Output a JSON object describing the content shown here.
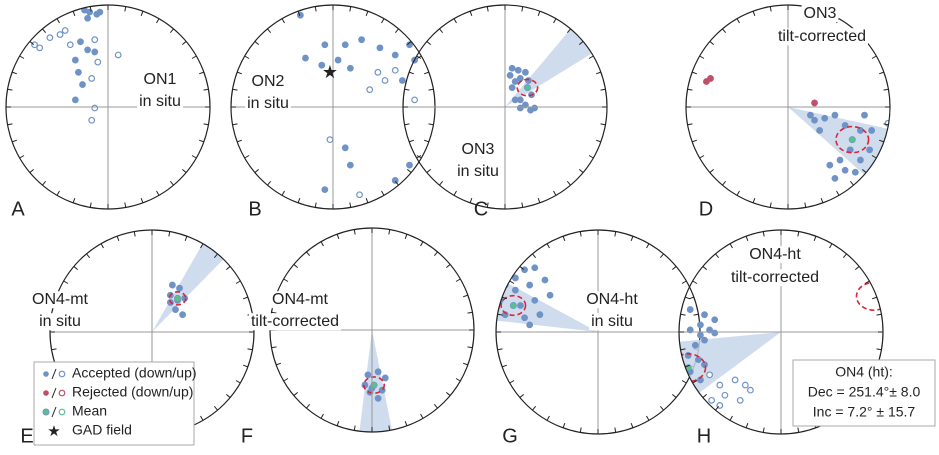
{
  "chart_data": [
    {
      "type": "stereonet",
      "label": "A",
      "title": [
        "ON1",
        "in situ"
      ],
      "down": {
        "x": [
          -0.23,
          -0.18,
          -0.11,
          -0.08,
          -0.2,
          -0.27,
          -0.2,
          -0.32,
          -0.29,
          -0.25,
          -0.32,
          -0.13
        ],
        "y": [
          0.95,
          0.93,
          0.91,
          0.93,
          0.87,
          0.64,
          0.56,
          0.46,
          0.34,
          0.22,
          0.07,
          0.54
        ]
      },
      "up": {
        "x": [
          -0.72,
          -0.67,
          -0.57,
          -0.47,
          -0.42,
          -0.37,
          -0.13,
          -0.1,
          -0.16,
          -0.13,
          -0.16,
          0.1
        ],
        "y": [
          0.61,
          0.58,
          0.68,
          0.71,
          0.75,
          0.61,
          0.66,
          0.44,
          0.28,
          -0.01,
          -0.13,
          0.51
        ]
      }
    },
    {
      "type": "stereonet",
      "label": "B",
      "title": [
        "ON2",
        "in situ"
      ],
      "down": {
        "x": [
          -0.32,
          -0.08,
          0.12,
          -0.11,
          0.05,
          0.17,
          0.28,
          0.46,
          0.61,
          0.75,
          0.8,
          0.68,
          0.66,
          -0.27,
          0.12,
          0.17,
          -0.08,
          0.75,
          0.93,
          0.61
        ],
        "y": [
          0.9,
          0.61,
          0.61,
          0.41,
          0.46,
          0.38,
          0.66,
          0.58,
          0.51,
          0.61,
          0.46,
          0.26,
          0.87,
          0.48,
          -0.4,
          -0.57,
          -0.81,
          -0.57,
          -0.47,
          -0.72
        ]
      },
      "up": {
        "x": [
          0.44,
          0.51,
          0.61,
          0.36,
          0.8,
          -0.03,
          0.26,
          -0.76,
          -0.81,
          0.66
        ],
        "y": [
          0.34,
          0.26,
          0.36,
          0.17,
          0.07,
          -0.32,
          -0.86,
          -0.76,
          -0.81,
          -0.91
        ]
      },
      "gad": [
        -0.03,
        0.34
      ]
    },
    {
      "type": "stereonet",
      "label": "C",
      "title": [
        "ON3",
        "in situ"
      ],
      "down": {
        "x": [
          0.07,
          0.13,
          0.2,
          0.05,
          0.15,
          0.1,
          0.23,
          0.07,
          0.26,
          0.15,
          0.2,
          0.29,
          0.15,
          0.25,
          0.1
        ],
        "y": [
          0.38,
          0.36,
          0.34,
          0.31,
          0.28,
          0.25,
          0.26,
          0.19,
          0.12,
          0.07,
          0.02,
          -0.01,
          -0.01,
          -0.03,
          0.07
        ]
      },
      "mean": [
        0.22,
        0.19
      ],
      "a95": 0.1
    },
    {
      "type": "stereonet",
      "label": "D",
      "title": [
        "ON3",
        "tilt-corrected"
      ],
      "down": {
        "x": [
          0.22,
          0.26,
          0.36,
          0.46,
          0.56,
          0.71,
          0.61,
          0.51,
          0.41,
          0.56,
          0.66,
          0.46,
          0.71,
          0.8,
          0.82,
          0.75,
          0.31
        ],
        "y": [
          -0.08,
          -0.13,
          -0.11,
          -0.08,
          -0.18,
          -0.23,
          -0.42,
          -0.52,
          -0.57,
          -0.62,
          -0.64,
          -0.7,
          -0.52,
          -0.42,
          -0.23,
          -0.08,
          -0.23
        ]
      },
      "up": {
        "x": [
          0.98
        ],
        "y": [
          -0.16
        ]
      },
      "rej_down": {
        "x": [
          -0.8,
          -0.76,
          0.26
        ],
        "y": [
          0.25,
          0.28,
          0.04
        ]
      },
      "mean": [
        0.63,
        -0.32
      ],
      "a95": 0.16
    },
    {
      "type": "stereonet",
      "label": "E",
      "title": [
        "ON4-mt",
        "in situ"
      ],
      "down": {
        "x": [
          0.2,
          0.27,
          0.18,
          0.25,
          0.32,
          0.23,
          0.3,
          0.18
        ],
        "y": [
          0.46,
          0.43,
          0.36,
          0.31,
          0.33,
          0.22,
          0.17,
          0.29
        ]
      },
      "mean": [
        0.25,
        0.33
      ],
      "a95": 0.08
    },
    {
      "type": "stereonet",
      "label": "F",
      "title": [
        "ON4-mt",
        "tilt-corrected"
      ],
      "down": {
        "x": [
          -0.04,
          0.06,
          0.13,
          -0.07,
          0.0,
          0.1,
          0.06,
          -0.02
        ],
        "y": [
          -0.44,
          -0.41,
          -0.47,
          -0.54,
          -0.57,
          -0.59,
          -0.67,
          -0.61
        ]
      },
      "mean": [
        0.02,
        -0.54
      ],
      "a95": 0.1
    },
    {
      "type": "stereonet",
      "label": "G",
      "title": [
        "ON4-ht",
        "in situ"
      ],
      "down": {
        "x": [
          -0.86,
          -0.78,
          -0.72,
          -0.62,
          -0.91,
          -0.81,
          -0.67,
          -0.52,
          -0.96,
          -0.76,
          -0.62,
          -0.47,
          -0.91,
          -0.72,
          -0.57,
          -0.67,
          -0.81
        ],
        "y": [
          0.63,
          0.69,
          0.61,
          0.63,
          0.46,
          0.41,
          0.46,
          0.51,
          0.31,
          0.26,
          0.31,
          0.36,
          0.17,
          0.14,
          0.17,
          0.07,
          0.53
        ]
      },
      "mean": [
        -0.83,
        0.26
      ],
      "a95": 0.12
    },
    {
      "type": "stereonet",
      "label": "H",
      "title": [
        "ON4-ht",
        "tilt-corrected"
      ],
      "down": {
        "x": [
          -0.89,
          -0.79,
          -0.75,
          -0.84,
          -0.7,
          -0.79,
          -0.91,
          -0.81,
          -0.89,
          -0.79,
          -0.75,
          -0.65,
          -0.75,
          -0.89,
          -0.65
        ],
        "y": [
          0.02,
          -0.03,
          -0.08,
          -0.13,
          0.02,
          0.07,
          -0.23,
          -0.27,
          -0.39,
          -0.47,
          -0.32,
          0.12,
          0.17,
          0.22,
          -0.01
        ]
      },
      "up": {
        "x": [
          -0.7,
          -0.6,
          -0.55,
          -0.45,
          -0.35,
          -0.3,
          -0.4,
          -0.6,
          -0.68,
          -0.72
        ],
        "y": [
          -0.42,
          -0.52,
          -0.62,
          -0.47,
          -0.52,
          -0.57,
          -0.67,
          -0.72,
          -0.67,
          -0.76
        ]
      },
      "mean": [
        -0.91,
        -0.35
      ],
      "a95": 0.17,
      "antipode": true
    }
  ],
  "colors": {
    "accepted": "#6f93c7",
    "rejected": "#c0506a",
    "mean": "#5cc08e",
    "ellipse": "#d9263a",
    "cone": "#c7d6ea"
  },
  "legend": [
    "Accepted (down/up)",
    "Rejected (down/up)",
    "Mean",
    "GAD field"
  ],
  "annotation": [
    "ON4 (ht):",
    "Dec = 251.4°± 8.0",
    "Inc = 7.2° ± 15.7"
  ]
}
